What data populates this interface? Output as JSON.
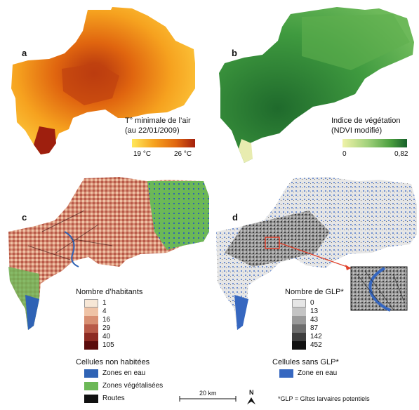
{
  "panels": {
    "a": {
      "letter": "a",
      "title_line1": "T° minimale de l’air",
      "title_line2": "(au 22/01/2009)",
      "min_label": "19 °C",
      "max_label": "26 °C",
      "colors": [
        "#ffe85a",
        "#f6a21f",
        "#e0650f",
        "#a3200e"
      ]
    },
    "b": {
      "letter": "b",
      "title_line1": "Indice de végétation",
      "title_line2": "(NDVI modifié)",
      "min_label": "0",
      "max_label": "0,82",
      "colors": [
        "#f0f2a8",
        "#9fd07a",
        "#4a9e3e",
        "#17602a"
      ]
    },
    "c": {
      "letter": "c",
      "legend_title": "Nombre d’habitants",
      "classes": [
        {
          "label": "1",
          "color": "#f7e7d6"
        },
        {
          "label": "4",
          "color": "#efc3a6"
        },
        {
          "label": "16",
          "color": "#d88f72"
        },
        {
          "label": "29",
          "color": "#b85a48"
        },
        {
          "label": "40",
          "color": "#8c2a22"
        },
        {
          "label": "105",
          "color": "#5a0c0c"
        }
      ],
      "uninhabited_title": "Cellules non habitées",
      "uninhabited": [
        {
          "label": "Zones en eau",
          "color": "#2f63b5"
        },
        {
          "label": "Zones végétalisées",
          "color": "#6cb857"
        },
        {
          "label": "Routes",
          "color": "#111111"
        }
      ]
    },
    "d": {
      "letter": "d",
      "legend_title": "Nombre de GLP*",
      "classes": [
        {
          "label": "0",
          "color": "#e6e6e6"
        },
        {
          "label": "13",
          "color": "#c4c4c4"
        },
        {
          "label": "43",
          "color": "#9a9a9a"
        },
        {
          "label": "87",
          "color": "#6e6e6e"
        },
        {
          "label": "142",
          "color": "#3e3e3e"
        },
        {
          "label": "452",
          "color": "#111111"
        }
      ],
      "noglp_title": "Cellules sans GLP*",
      "noglp": [
        {
          "label": "Zone en eau",
          "color": "#3667c0"
        }
      ]
    }
  },
  "scale_bar": {
    "label": "20 km"
  },
  "north_arrow": {
    "label": "N"
  },
  "footnote": "*GLP = Gîtes larvaires potentiels"
}
